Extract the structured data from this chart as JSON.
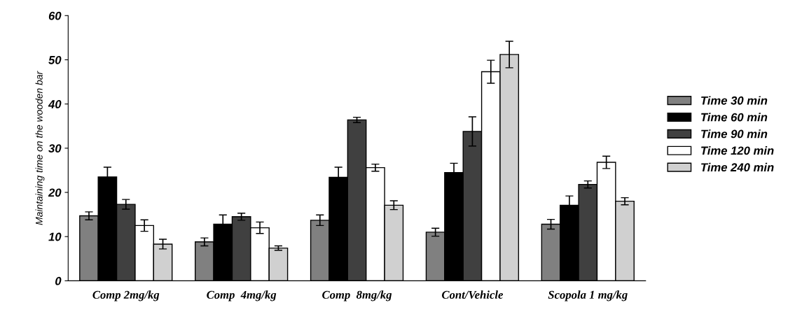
{
  "chart_data": {
    "type": "bar",
    "ylabel": "Maintaining time on the wooden bar",
    "categories": [
      "Comp 2mg/kg",
      "Comp  4mg/kg",
      "Comp  8mg/kg",
      "Cont/Vehicle",
      "Scopola 1 mg/kg"
    ],
    "series": [
      {
        "name": "Time 30 min",
        "color": "#808080",
        "values": [
          14.7,
          8.8,
          13.7,
          11,
          12.8
        ],
        "errors": [
          0.9,
          0.9,
          1.2,
          0.9,
          1.1
        ]
      },
      {
        "name": "Time 60 min",
        "color": "#000000",
        "values": [
          23.5,
          12.8,
          23.4,
          24.5,
          17.1
        ],
        "errors": [
          2.2,
          2.1,
          2.3,
          2.1,
          2.1
        ]
      },
      {
        "name": "Time 90 min",
        "color": "#404040",
        "values": [
          17.3,
          14.5,
          36.4,
          33.8,
          21.8
        ],
        "errors": [
          1.1,
          0.8,
          0.6,
          3.3,
          0.8
        ]
      },
      {
        "name": "Time 120 min",
        "color": "#ffffff",
        "values": [
          12.5,
          12,
          25.6,
          47.3,
          26.8
        ],
        "errors": [
          1.3,
          1.3,
          0.8,
          2.6,
          1.4
        ]
      },
      {
        "name": "Time 240 min",
        "color": "#d0d0d0",
        "values": [
          8.3,
          7.4,
          17.1,
          51.2,
          18
        ],
        "errors": [
          1.1,
          0.5,
          1,
          3,
          0.8
        ]
      }
    ],
    "ylim": [
      0,
      60
    ],
    "yticks": [
      0,
      10,
      20,
      30,
      40,
      50,
      60
    ],
    "grid": false,
    "legend": "right"
  }
}
